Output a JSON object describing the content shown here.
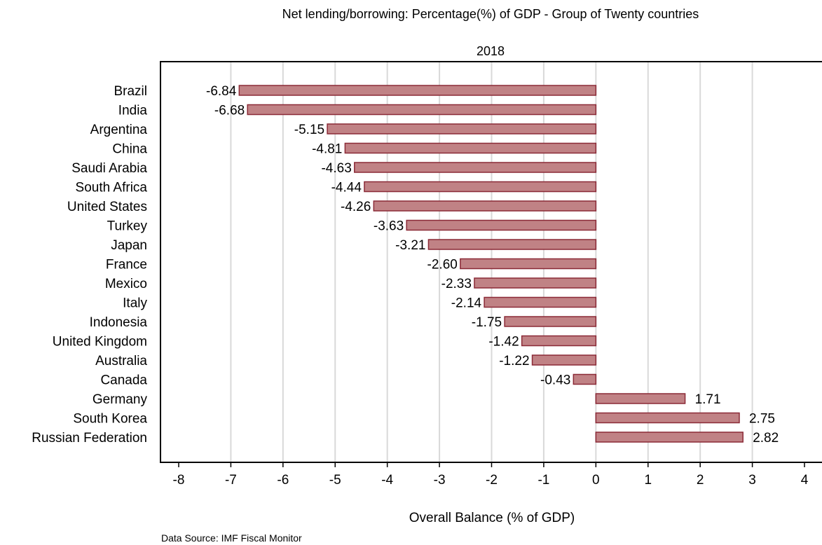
{
  "chart_data": {
    "type": "bar",
    "orientation": "horizontal",
    "title": "Net lending/borrowing: Percentage(%) of GDP - Group of Twenty countries",
    "subtitle": "2018",
    "xlabel": "Overall Balance (% of GDP)",
    "source_note": "Data Source: IMF Fiscal Monitor",
    "xlim": [
      -8,
      4
    ],
    "xticks": [
      "-8",
      "-7",
      "-6",
      "-5",
      "-4",
      "-3",
      "-2",
      "-1",
      "0",
      "1",
      "2",
      "3",
      "4"
    ],
    "grid": "vertical",
    "legend": "none",
    "bar_color": "#c08285",
    "bar_edge_color": "#8b2a37",
    "categories": [
      "Brazil",
      "India",
      "Argentina",
      "China",
      "Saudi Arabia",
      "South Africa",
      "United States",
      "Turkey",
      "Japan",
      "France",
      "Mexico",
      "Italy",
      "Indonesia",
      "United Kingdom",
      "Australia",
      "Canada",
      "Germany",
      "South Korea",
      "Russian Federation"
    ],
    "values": [
      -6.84,
      -6.68,
      -5.15,
      -4.81,
      -4.63,
      -4.44,
      -4.26,
      -3.63,
      -3.21,
      -2.6,
      -2.33,
      -2.14,
      -1.75,
      -1.42,
      -1.22,
      -0.43,
      1.71,
      2.75,
      2.82
    ],
    "value_labels": [
      "-6.84",
      "-6.68",
      "-5.15",
      "-4.81",
      "-4.63",
      "-4.44",
      "-4.26",
      "-3.63",
      "-3.21",
      "-2.60",
      "-2.33",
      "-2.14",
      "-1.75",
      "-1.42",
      "-1.22",
      "-0.43",
      "1.71",
      "2.75",
      "2.82"
    ]
  }
}
